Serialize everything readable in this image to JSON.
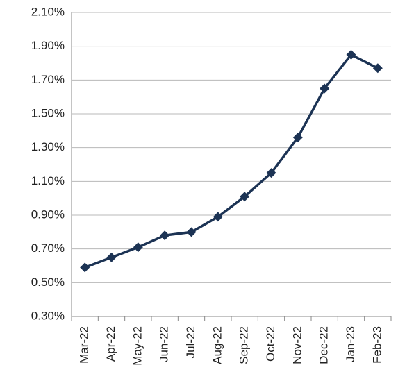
{
  "chart_data": {
    "type": "line",
    "categories": [
      "Mar-22",
      "Apr-22",
      "May-22",
      "Jun-22",
      "Jul-22",
      "Aug-22",
      "Sep-22",
      "Oct-22",
      "Nov-22",
      "Dec-22",
      "Jan-23",
      "Feb-23"
    ],
    "series": [
      {
        "color": "#1c3354",
        "values": [
          0.59,
          0.65,
          0.71,
          0.78,
          0.8,
          0.89,
          1.01,
          1.15,
          1.36,
          1.65,
          1.85,
          1.77
        ]
      }
    ],
    "ylim": [
      0.3,
      2.1
    ],
    "yticks": [
      {
        "value": 0.3,
        "label": "0.30%"
      },
      {
        "value": 0.5,
        "label": "0.50%"
      },
      {
        "value": 0.7,
        "label": "0.70%"
      },
      {
        "value": 0.9,
        "label": "0.90%"
      },
      {
        "value": 1.1,
        "label": "1.10%"
      },
      {
        "value": 1.3,
        "label": "1.30%"
      },
      {
        "value": 1.5,
        "label": "1.50%"
      },
      {
        "value": 1.7,
        "label": "1.70%"
      },
      {
        "value": 1.9,
        "label": "1.90%"
      },
      {
        "value": 2.1,
        "label": "2.10%"
      }
    ],
    "grid": true
  }
}
